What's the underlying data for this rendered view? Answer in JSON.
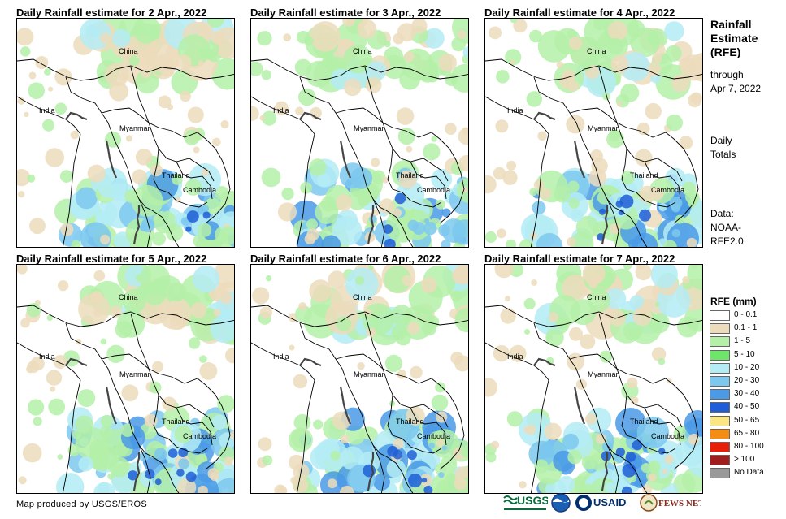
{
  "panels": [
    {
      "title": "Daily Rainfall estimate for 2 Apr., 2022",
      "intensity": 0.55,
      "south_bias": 0.8
    },
    {
      "title": "Daily Rainfall estimate for 3 Apr., 2022",
      "intensity": 0.6,
      "south_bias": 0.6
    },
    {
      "title": "Daily Rainfall estimate for 4 Apr., 2022",
      "intensity": 0.45,
      "south_bias": 0.7
    },
    {
      "title": "Daily Rainfall estimate for 5 Apr., 2022",
      "intensity": 0.55,
      "south_bias": 0.8
    },
    {
      "title": "Daily Rainfall estimate for 6 Apr., 2022",
      "intensity": 0.6,
      "south_bias": 0.6
    },
    {
      "title": "Daily Rainfall estimate for 7 Apr., 2022",
      "intensity": 0.55,
      "south_bias": 0.7
    }
  ],
  "map_labels": {
    "china": "China",
    "india": "India",
    "myanmar": "Myanmar",
    "thailand": "Thailand",
    "cambodia": "Cambodia"
  },
  "sidebar": {
    "heading_1": "Rainfall",
    "heading_2": "Estimate",
    "heading_3": "(RFE)",
    "through_1": "through",
    "through_2": "Apr 7, 2022",
    "daily_1": "Daily",
    "daily_2": "Totals",
    "data_1": "Data:",
    "data_2": "NOAA-",
    "data_3": "RFE2.0"
  },
  "legend": {
    "title": "RFE (mm)",
    "items": [
      {
        "label": "0 - 0.1",
        "color": "#ffffff"
      },
      {
        "label": "0.1 - 1",
        "color": "#ecdcbc"
      },
      {
        "label": "1 - 5",
        "color": "#b4f0a8"
      },
      {
        "label": "5 - 10",
        "color": "#6ee66a"
      },
      {
        "label": "10 - 20",
        "color": "#b4ecf5"
      },
      {
        "label": "20 - 30",
        "color": "#7cc8ee"
      },
      {
        "label": "30 - 40",
        "color": "#4a9ae6"
      },
      {
        "label": "40 - 50",
        "color": "#1f5ed6"
      },
      {
        "label": "50 - 65",
        "color": "#fae682"
      },
      {
        "label": "65 - 80",
        "color": "#f58c14"
      },
      {
        "label": "80 - 100",
        "color": "#e61e0a"
      },
      {
        "label": "> 100",
        "color": "#a01e1e"
      },
      {
        "label": "No Data",
        "color": "#999999"
      }
    ]
  },
  "footer": {
    "credit": "Map produced by USGS/EROS",
    "logos": [
      "usgs-logo",
      "noaa-logo",
      "usaid-logo",
      "fewsnet-logo"
    ],
    "logo_text": {
      "usgs": "USGS",
      "usaid": "USAID",
      "fewsnet": "FEWS NET"
    }
  }
}
